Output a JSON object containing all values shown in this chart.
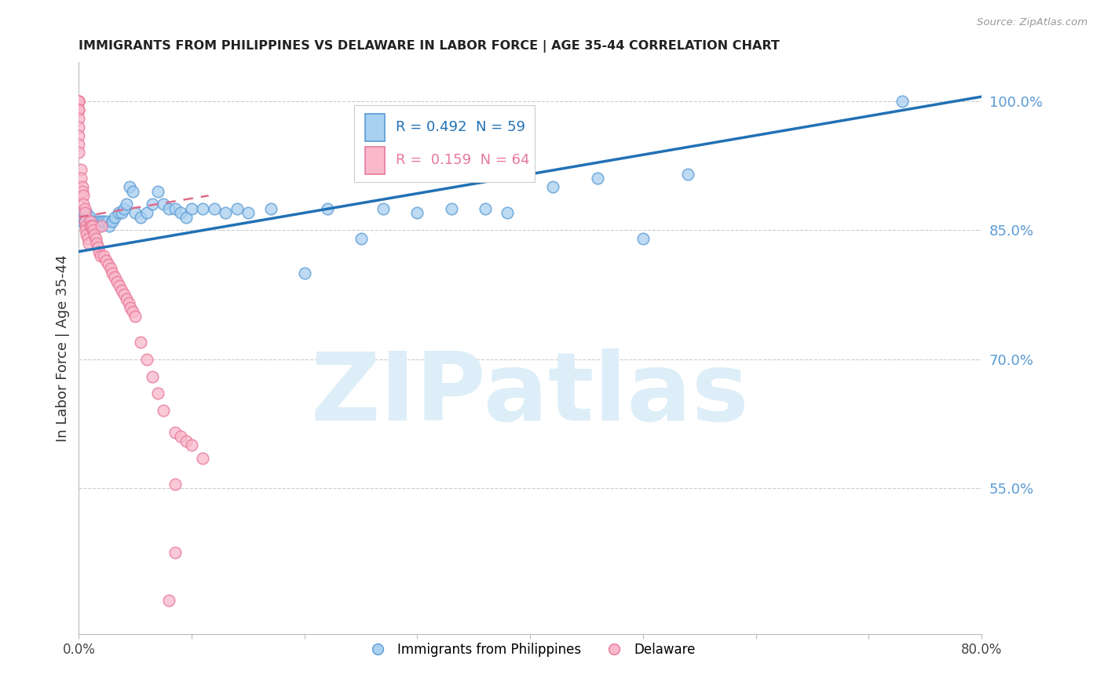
{
  "title": "IMMIGRANTS FROM PHILIPPINES VS DELAWARE IN LABOR FORCE | AGE 35-44 CORRELATION CHART",
  "source_text": "Source: ZipAtlas.com",
  "ylabel": "In Labor Force | Age 35-44",
  "xlim": [
    0.0,
    0.8
  ],
  "ylim": [
    0.38,
    1.045
  ],
  "yticks_right": [
    0.55,
    0.7,
    0.85,
    1.0
  ],
  "ytick_labels_right": [
    "55.0%",
    "70.0%",
    "85.0%",
    "100.0%"
  ],
  "xtick_positions": [
    0.0,
    0.1,
    0.2,
    0.3,
    0.4,
    0.5,
    0.6,
    0.7,
    0.8
  ],
  "xtick_labels": [
    "0.0%",
    "",
    "",
    "",
    "",
    "",
    "",
    "",
    "80.0%"
  ],
  "grid_color": "#cccccc",
  "background_color": "#ffffff",
  "blue_fill": "#a8d0f0",
  "blue_edge": "#5b9bd5",
  "pink_fill": "#f9b8cb",
  "pink_edge": "#e8799a",
  "blue_line_color": "#2171b5",
  "pink_line_color": "#de6b8a",
  "right_axis_color": "#5b9bd5",
  "watermark_text": "ZIPatlas",
  "watermark_color": "#ddeef8",
  "legend_r_blue": "0.492",
  "legend_n_blue": "59",
  "legend_r_pink": "0.159",
  "legend_n_pink": "64",
  "blue_scatter_x": [
    0.0,
    0.0,
    0.003,
    0.004,
    0.005,
    0.006,
    0.007,
    0.008,
    0.009,
    0.01,
    0.01,
    0.012,
    0.013,
    0.015,
    0.016,
    0.017,
    0.018,
    0.02,
    0.022,
    0.025,
    0.027,
    0.03,
    0.032,
    0.035,
    0.038,
    0.04,
    0.042,
    0.045,
    0.048,
    0.05,
    0.055,
    0.06,
    0.065,
    0.07,
    0.075,
    0.08,
    0.085,
    0.09,
    0.095,
    0.1,
    0.11,
    0.12,
    0.13,
    0.14,
    0.15,
    0.17,
    0.2,
    0.22,
    0.25,
    0.27,
    0.3,
    0.33,
    0.36,
    0.38,
    0.42,
    0.46,
    0.5,
    0.54,
    0.73
  ],
  "blue_scatter_y": [
    0.87,
    0.87,
    0.86,
    0.865,
    0.86,
    0.86,
    0.87,
    0.855,
    0.86,
    0.865,
    0.855,
    0.86,
    0.855,
    0.855,
    0.855,
    0.86,
    0.855,
    0.86,
    0.86,
    0.86,
    0.855,
    0.86,
    0.865,
    0.87,
    0.87,
    0.875,
    0.88,
    0.9,
    0.895,
    0.87,
    0.865,
    0.87,
    0.88,
    0.895,
    0.88,
    0.875,
    0.875,
    0.87,
    0.865,
    0.875,
    0.875,
    0.875,
    0.87,
    0.875,
    0.87,
    0.875,
    0.8,
    0.875,
    0.84,
    0.875,
    0.87,
    0.875,
    0.875,
    0.87,
    0.9,
    0.91,
    0.84,
    0.915,
    1.0
  ],
  "pink_scatter_x": [
    0.0,
    0.0,
    0.0,
    0.0,
    0.0,
    0.0,
    0.0,
    0.0,
    0.0,
    0.0,
    0.002,
    0.002,
    0.003,
    0.003,
    0.004,
    0.004,
    0.005,
    0.005,
    0.005,
    0.006,
    0.006,
    0.007,
    0.008,
    0.009,
    0.01,
    0.01,
    0.011,
    0.012,
    0.013,
    0.014,
    0.015,
    0.016,
    0.017,
    0.018,
    0.019,
    0.02,
    0.022,
    0.024,
    0.026,
    0.028,
    0.03,
    0.032,
    0.034,
    0.036,
    0.038,
    0.04,
    0.042,
    0.044,
    0.046,
    0.048,
    0.05,
    0.055,
    0.06,
    0.065,
    0.07,
    0.075,
    0.08,
    0.085,
    0.09,
    0.095,
    0.1,
    0.11,
    0.085,
    0.085
  ],
  "pink_scatter_y": [
    1.0,
    1.0,
    1.0,
    0.99,
    0.99,
    0.98,
    0.97,
    0.96,
    0.95,
    0.94,
    0.92,
    0.91,
    0.9,
    0.895,
    0.89,
    0.88,
    0.875,
    0.87,
    0.86,
    0.855,
    0.85,
    0.845,
    0.84,
    0.835,
    0.86,
    0.855,
    0.855,
    0.855,
    0.85,
    0.845,
    0.84,
    0.835,
    0.83,
    0.825,
    0.82,
    0.855,
    0.82,
    0.815,
    0.81,
    0.805,
    0.8,
    0.795,
    0.79,
    0.785,
    0.78,
    0.775,
    0.77,
    0.765,
    0.76,
    0.755,
    0.75,
    0.72,
    0.7,
    0.68,
    0.66,
    0.64,
    0.42,
    0.615,
    0.61,
    0.605,
    0.6,
    0.585,
    0.555,
    0.475
  ],
  "blue_trend_x": [
    0.0,
    0.8
  ],
  "blue_trend_y": [
    0.825,
    1.005
  ],
  "pink_trend_x": [
    0.0,
    0.115
  ],
  "pink_trend_y": [
    0.865,
    0.89
  ]
}
